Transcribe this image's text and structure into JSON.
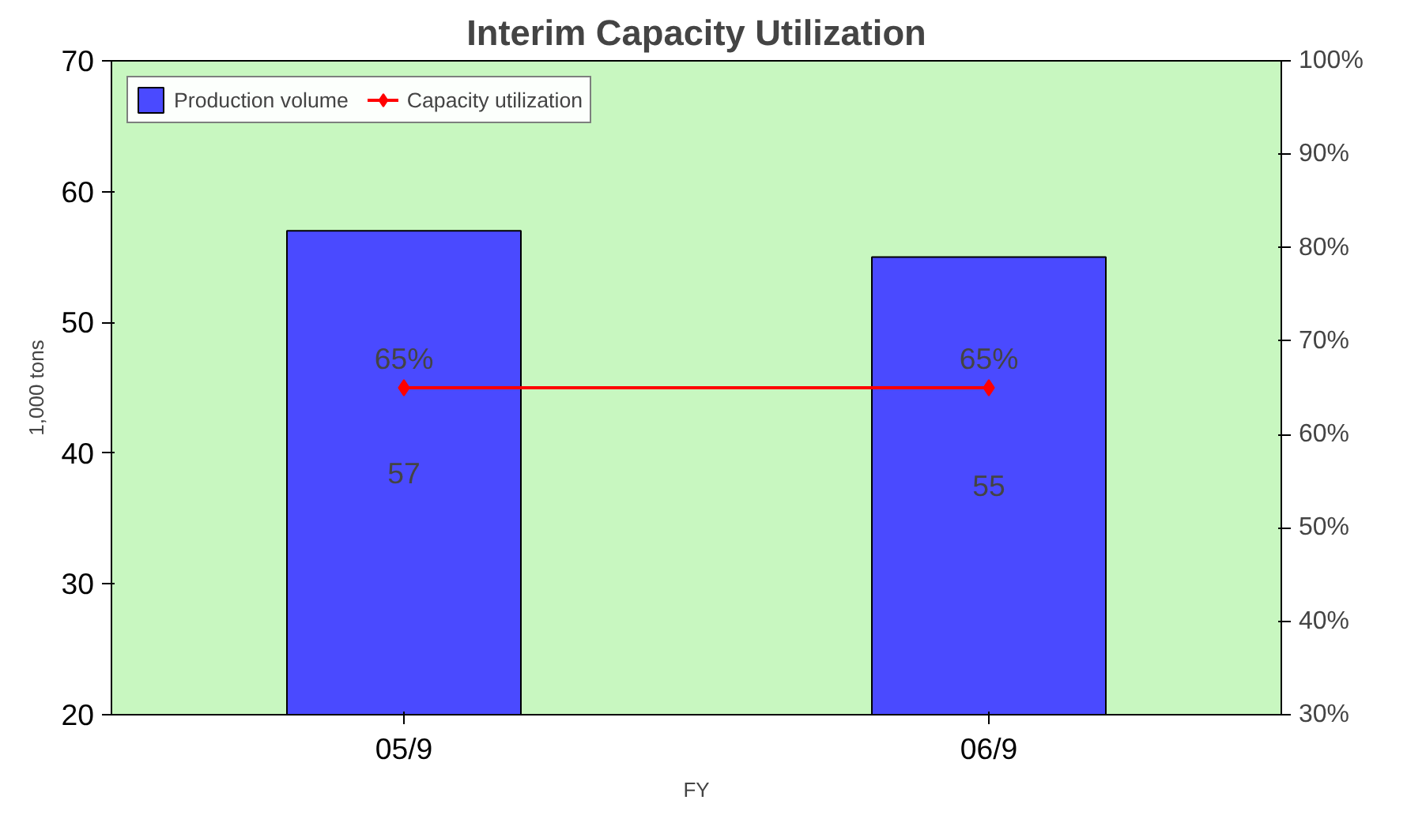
{
  "chart_data": {
    "type": "bar",
    "title": "Interim Capacity Utilization",
    "ylabel": "1,000 tons",
    "xlabel": "FY",
    "categories": [
      "05/9",
      "06/9"
    ],
    "series": [
      {
        "name": "Production volume",
        "color": "#4a4aff",
        "values": [
          57,
          55
        ]
      },
      {
        "name": "Capacity utilization",
        "type": "line",
        "axis": "y2",
        "color": "#ff0000",
        "values": [
          65,
          65
        ],
        "value_labels": [
          "65%",
          "65%"
        ]
      }
    ],
    "data_labels": true,
    "ylim": [
      20,
      70
    ],
    "yticks": [
      20,
      30,
      40,
      50,
      60,
      70
    ],
    "y2lim": [
      30,
      100
    ],
    "y2ticks": [
      {
        "value": 30,
        "label": "30%"
      },
      {
        "value": 40,
        "label": "40%"
      },
      {
        "value": 50,
        "label": "50%"
      },
      {
        "value": 60,
        "label": "60%"
      },
      {
        "value": 70,
        "label": "70%"
      },
      {
        "value": 80,
        "label": "80%"
      },
      {
        "value": 90,
        "label": "90%"
      },
      {
        "value": 100,
        "label": "100%"
      }
    ],
    "marker": "diamond",
    "legend": "top left",
    "grid": false
  }
}
